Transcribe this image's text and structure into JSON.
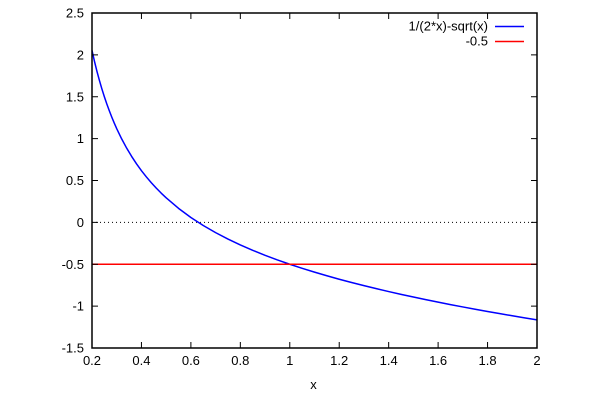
{
  "chart_data": {
    "type": "line",
    "title": "",
    "xlabel": "x",
    "ylabel": "",
    "xlim": [
      0.2,
      2
    ],
    "ylim": [
      -1.5,
      2.5
    ],
    "xticks": [
      0.2,
      0.4,
      0.6,
      0.8,
      1,
      1.2,
      1.4,
      1.6,
      1.8,
      2
    ],
    "yticks": [
      -1.5,
      -1,
      -0.5,
      0,
      0.5,
      1,
      1.5,
      2,
      2.5
    ],
    "grid": "dotted line at y=0 only",
    "legend_position": "top-right-inside",
    "background": "#ffffff",
    "axis_color": "#000000",
    "text_color": "#000000",
    "series": [
      {
        "name": "1/(2*x)-sqrt(x)",
        "color": "#0000ff",
        "x": [
          0.2,
          0.21,
          0.22,
          0.23,
          0.24,
          0.25,
          0.26,
          0.27,
          0.28,
          0.29,
          0.3,
          0.32,
          0.34,
          0.36,
          0.38,
          0.4,
          0.42,
          0.44,
          0.46,
          0.48,
          0.5,
          0.55,
          0.6,
          0.65,
          0.7,
          0.75,
          0.8,
          0.85,
          0.9,
          0.95,
          1.0,
          1.05,
          1.1,
          1.15,
          1.2,
          1.25,
          1.3,
          1.35,
          1.4,
          1.45,
          1.5,
          1.55,
          1.6,
          1.65,
          1.7,
          1.75,
          1.8,
          1.85,
          1.9,
          1.95,
          2.0
        ],
        "y": [
          2.0528,
          1.9227,
          1.8037,
          1.6943,
          1.5934,
          1.5,
          1.4132,
          1.3322,
          1.2566,
          1.1856,
          1.1189,
          0.9968,
          0.8875,
          0.7889,
          0.6994,
          0.6175,
          0.5424,
          0.473,
          0.4087,
          0.3489,
          0.2929,
          0.1675,
          0.0587,
          -0.037,
          -0.1224,
          -0.1994,
          -0.2694,
          -0.3337,
          -0.3931,
          -0.4484,
          -0.5,
          -0.5485,
          -0.5943,
          -0.6376,
          -0.6788,
          -0.718,
          -0.7556,
          -0.7915,
          -0.8261,
          -0.8593,
          -0.8914,
          -0.9224,
          -0.9524,
          -0.9815,
          -1.0097,
          -1.0372,
          -1.0639,
          -1.0899,
          -1.1152,
          -1.14,
          -1.1642
        ]
      },
      {
        "name": "-0.5",
        "color": "#ff0000",
        "x": [
          0.2,
          2
        ],
        "y": [
          -0.5,
          -0.5
        ]
      }
    ]
  }
}
